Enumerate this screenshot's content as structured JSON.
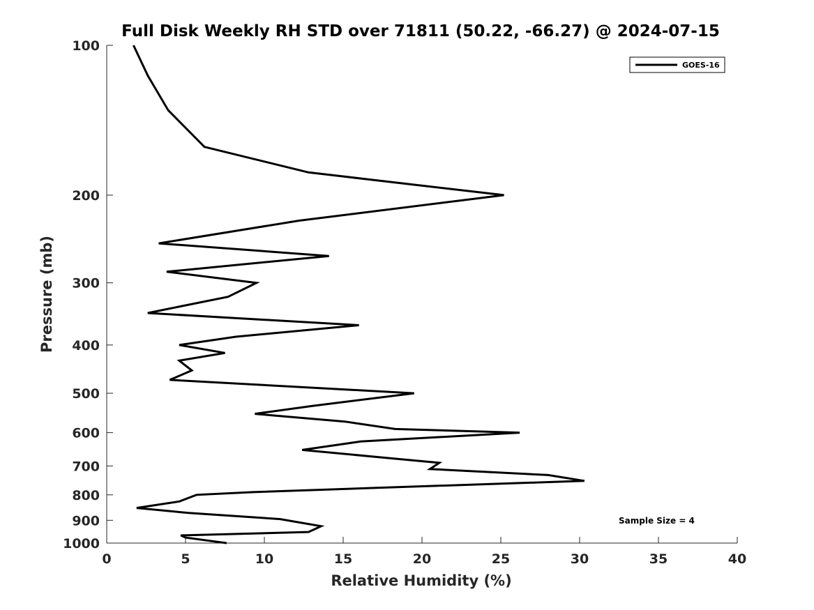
{
  "chart_data": {
    "type": "line",
    "title": "Full Disk Weekly RH STD over 71811 (50.22, -66.27) @ 2024-07-15",
    "xlabel": "Relative Humidity (%)",
    "ylabel": "Pressure (mb)",
    "xlim": [
      0,
      40
    ],
    "ylim": [
      100,
      1000
    ],
    "yscale": "log",
    "yreversed": true,
    "xticks": [
      0,
      5,
      10,
      15,
      20,
      25,
      30,
      35,
      40
    ],
    "yticks": [
      100,
      200,
      300,
      400,
      500,
      600,
      700,
      800,
      900,
      1000
    ],
    "grid": false,
    "legend": {
      "location": "top-right",
      "entries": [
        "GOES-16"
      ]
    },
    "annotation": "Sample Size = 4",
    "series": [
      {
        "name": "GOES-16",
        "color": "#000000",
        "x": [
          1.7,
          2.6,
          3.9,
          6.2,
          12.8,
          25.2,
          12.2,
          3.3,
          14.1,
          3.8,
          9.5,
          7.7,
          2.6,
          16.0,
          8.2,
          4.6,
          7.5,
          4.6,
          5.4,
          4.0,
          19.5,
          13.1,
          9.4,
          15.1,
          18.3,
          26.2,
          16.1,
          12.4,
          17.9,
          21.1,
          20.5,
          28.0,
          30.3,
          16.8,
          9.3,
          5.7,
          4.6,
          1.9,
          5.2,
          11.0,
          13.6,
          12.8,
          4.7,
          5.0,
          7.6
        ],
        "y": [
          100,
          115,
          135,
          160,
          180,
          200,
          225,
          250,
          265,
          285,
          300,
          320,
          345,
          365,
          385,
          400,
          415,
          430,
          450,
          470,
          500,
          530,
          550,
          570,
          590,
          600,
          625,
          650,
          675,
          690,
          710,
          730,
          750,
          775,
          790,
          800,
          825,
          850,
          870,
          895,
          925,
          950,
          965,
          975,
          1000
        ]
      }
    ]
  }
}
